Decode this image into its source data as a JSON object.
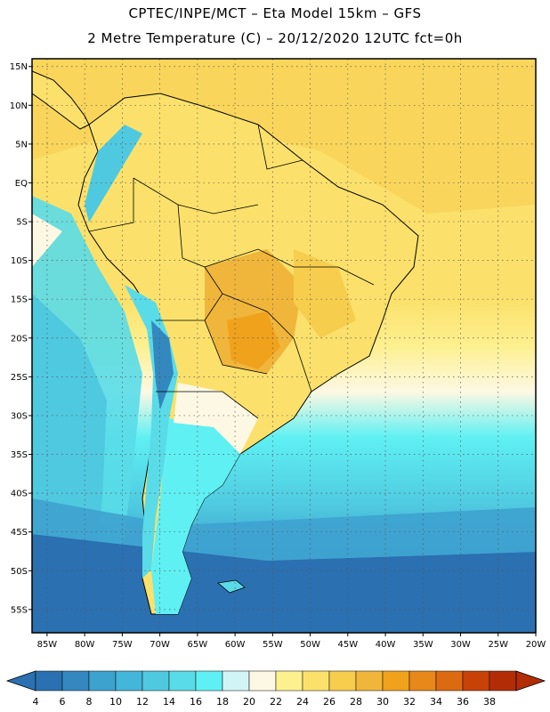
{
  "header": {
    "line1": "CPTEC/INPE/MCT –  Eta Model 15km – GFS",
    "line2": "2 Metre Temperature (C) – 20/12/2020 12UTC fct=0h"
  },
  "map": {
    "lat_labels": [
      "15N",
      "10N",
      "5N",
      "EQ",
      "5S",
      "10S",
      "15S",
      "20S",
      "25S",
      "30S",
      "35S",
      "40S",
      "45S",
      "50S",
      "55S"
    ],
    "lon_labels": [
      "85W",
      "80W",
      "75W",
      "70W",
      "65W",
      "60W",
      "55W",
      "50W",
      "45W",
      "40W",
      "35W",
      "30W",
      "25W",
      "20W"
    ],
    "extent": {
      "lon_min": -87,
      "lon_max": -20,
      "lat_min": -58,
      "lat_max": 16
    }
  },
  "colorbar": {
    "ticks": [
      "4",
      "6",
      "8",
      "10",
      "12",
      "14",
      "16",
      "18",
      "20",
      "22",
      "24",
      "26",
      "28",
      "30",
      "32",
      "34",
      "36",
      "38"
    ],
    "colors": [
      "#2b70b1",
      "#3388c0",
      "#3ea2cf",
      "#44b6d9",
      "#4fc9e0",
      "#59dbe8",
      "#5ff0f3",
      "#d1f4f7",
      "#fdf8e3",
      "#fdf08f",
      "#fbe16b",
      "#f7cd4e",
      "#f0b63b",
      "#f0a21d",
      "#e8871a",
      "#dc6a10",
      "#c84208",
      "#b22d06"
    ]
  }
}
